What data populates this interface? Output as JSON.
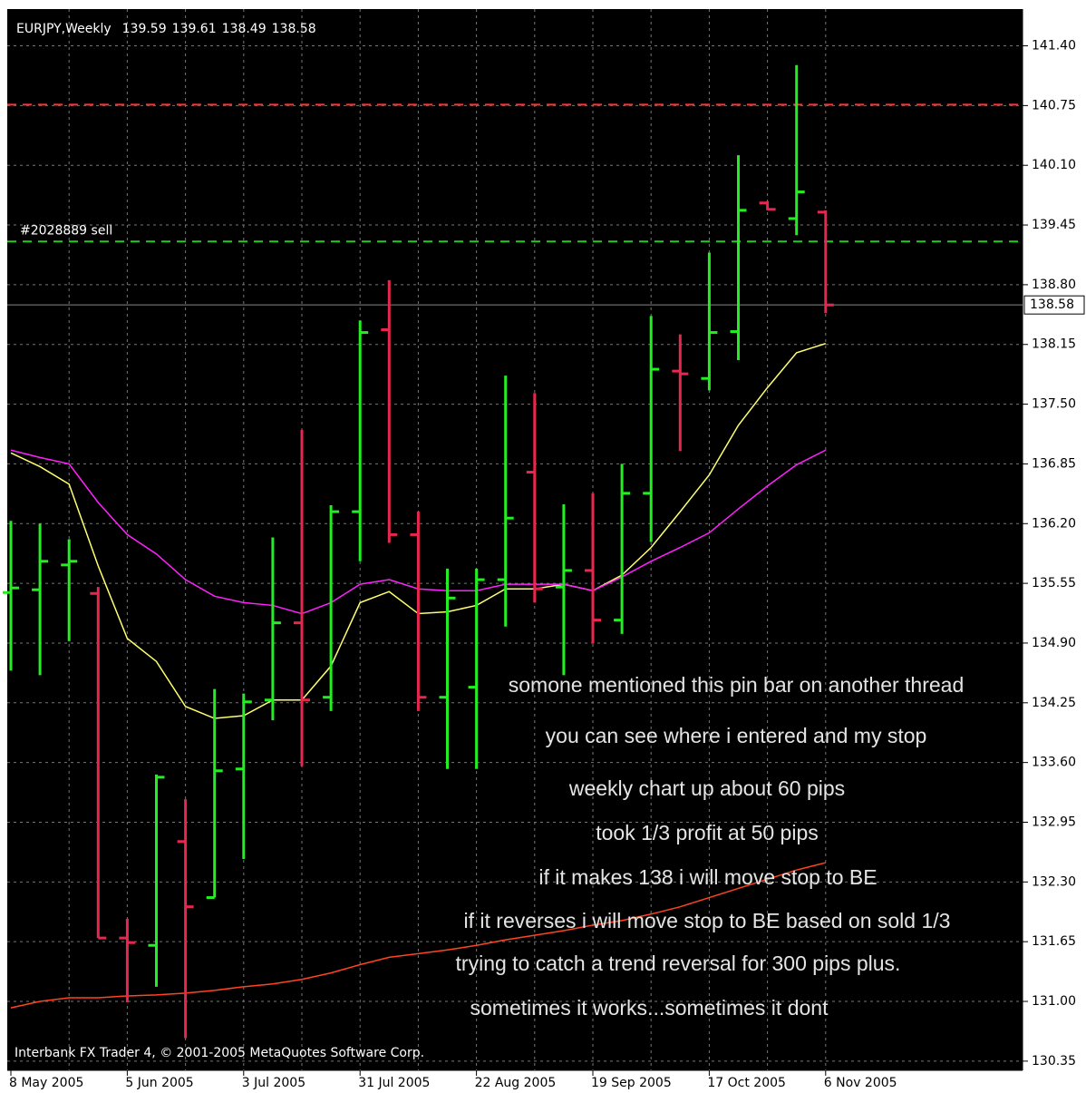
{
  "chart_data": {
    "type": "ohlc",
    "symbol": "EURJPY,Weekly",
    "footer": "Interbank FX Trader 4, © 2001-2005 MetaQuotes Software Corp.",
    "categories": [
      "8 May 2005",
      null,
      null,
      null,
      "5 Jun 2005",
      null,
      null,
      null,
      "3 Jul 2005",
      null,
      null,
      null,
      "31 Jul 2005",
      null,
      null,
      null,
      "22 Aug 2005",
      null,
      null,
      null,
      "19 Sep 2005",
      null,
      null,
      null,
      "17 Oct 2005",
      null,
      null,
      null,
      "6 Nov 2005"
    ],
    "open": [
      135.45,
      135.48,
      135.75,
      135.44,
      131.69,
      131.61,
      132.74,
      132.13,
      133.53,
      134.28,
      135.12,
      134.31,
      136.33,
      138.31,
      136.08,
      134.31,
      134.42,
      135.59,
      136.76,
      135.51,
      135.69,
      135.15,
      136.53,
      137.86,
      137.78,
      138.29,
      139.69,
      139.52,
      139.59
    ],
    "high": [
      136.23,
      136.2,
      136.03,
      135.51,
      131.9,
      133.47,
      133.2,
      134.4,
      134.35,
      136.05,
      137.22,
      136.4,
      138.41,
      138.85,
      136.33,
      135.71,
      135.71,
      137.81,
      137.62,
      136.41,
      136.53,
      136.85,
      138.46,
      138.26,
      139.15,
      140.21,
      139.71,
      141.19,
      139.61
    ],
    "low": [
      134.6,
      134.55,
      134.92,
      131.69,
      130.99,
      131.16,
      130.6,
      132.13,
      132.55,
      134.06,
      133.56,
      134.16,
      135.79,
      135.99,
      134.16,
      133.53,
      133.53,
      135.08,
      135.34,
      134.55,
      134.9,
      135.0,
      136.0,
      136.99,
      137.65,
      137.98,
      139.61,
      139.34,
      138.49
    ],
    "close": [
      135.5,
      135.79,
      135.79,
      131.69,
      131.64,
      133.44,
      132.03,
      133.51,
      134.26,
      135.12,
      134.28,
      136.33,
      138.28,
      136.08,
      134.31,
      135.39,
      135.59,
      136.26,
      135.49,
      135.69,
      135.15,
      136.53,
      137.88,
      137.83,
      138.28,
      139.61,
      139.62,
      139.81,
      138.58
    ],
    "up_color": "#22ee22",
    "down_color": "#e8274f",
    "lines": [
      {
        "color": "#ffff70",
        "values": [
          136.97,
          136.82,
          136.63,
          135.74,
          134.95,
          134.7,
          134.21,
          134.08,
          134.11,
          134.28,
          134.28,
          134.65,
          135.34,
          135.46,
          135.22,
          135.24,
          135.31,
          135.49,
          135.49,
          135.54,
          135.47,
          135.64,
          135.94,
          136.33,
          136.73,
          137.27,
          137.68,
          138.06,
          138.16
        ]
      },
      {
        "color": "#ff22ff",
        "values": [
          137.0,
          136.92,
          136.85,
          136.43,
          136.08,
          135.87,
          135.59,
          135.41,
          135.34,
          135.31,
          135.22,
          135.34,
          135.54,
          135.59,
          135.49,
          135.47,
          135.47,
          135.54,
          135.54,
          135.54,
          135.47,
          135.62,
          135.79,
          135.94,
          136.1,
          136.36,
          136.61,
          136.84,
          137.0
        ]
      },
      {
        "color": "#ff4422",
        "values": [
          130.93,
          131.0,
          131.04,
          131.04,
          131.06,
          131.07,
          131.09,
          131.12,
          131.16,
          131.19,
          131.24,
          131.31,
          131.4,
          131.48,
          131.52,
          131.56,
          131.61,
          131.67,
          131.72,
          131.77,
          131.83,
          131.88,
          131.95,
          132.03,
          132.13,
          132.23,
          132.33,
          132.43,
          132.51
        ]
      }
    ],
    "levels": [
      {
        "value": 140.76,
        "color": "#ff3333"
      },
      {
        "value": 139.27,
        "color": "#22cc22",
        "label": "#2028889 sell"
      }
    ],
    "ylim": [
      130.25,
      141.8
    ],
    "yticks": [
      {
        "value": 141.4,
        "label": "141.40"
      },
      140.75,
      {
        "value": 140.1,
        "label": "140.10"
      },
      139.45,
      {
        "value": 138.8,
        "label": "138.80"
      },
      138.15,
      {
        "value": 137.5,
        "label": "137.50"
      },
      136.85,
      {
        "value": 136.2,
        "label": "136.20"
      },
      135.55,
      {
        "value": 134.9,
        "label": "134.90"
      },
      134.25,
      {
        "value": 133.6,
        "label": "133.60"
      },
      132.95,
      {
        "value": 132.3,
        "label": "132.30"
      },
      131.65,
      {
        "value": 131,
        "label": "131.00"
      },
      130.35
    ],
    "grid": true,
    "annotations": [
      "somone mentioned this pin bar on another thread",
      "you can see where i entered and my stop",
      "weekly chart up about 60 pips",
      "took 1/3 profit at 50 pips",
      "if it makes 138 i will move stop to BE",
      "if it reverses i will move stop to BE based on sold 1/3",
      "trying to catch a trend reversal for 300 pips plus.",
      "sometimes it works...sometimes it dont"
    ]
  }
}
